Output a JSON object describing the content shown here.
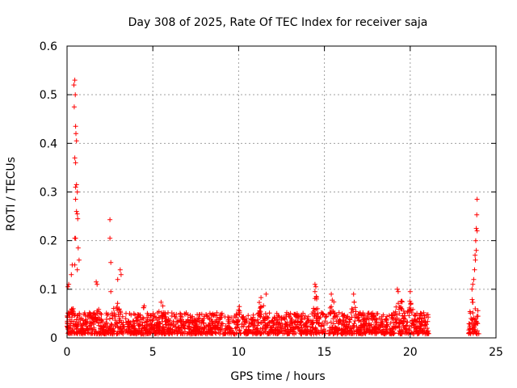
{
  "chart_data": {
    "type": "scatter",
    "title": "Day 308 of 2025, Rate Of TEC Index for receiver saja",
    "xlabel": "GPS time / hours",
    "ylabel": "ROTI / TECUs",
    "xlim": [
      0,
      25
    ],
    "ylim": [
      0,
      0.6
    ],
    "x_ticks": [
      "0",
      "5",
      "10",
      "15",
      "20",
      "25"
    ],
    "y_ticks": [
      "0",
      "0.1",
      "0.2",
      "0.3",
      "0.4",
      "0.5",
      "0.6"
    ],
    "grid": true,
    "marker": "+",
    "color": "#ff0000",
    "segments": [
      {
        "from": 0.0,
        "to": 21.1,
        "base_min": 0.008,
        "base_max": 0.052
      },
      {
        "from": 23.4,
        "to": 24.0,
        "base_min": 0.008,
        "base_max": 0.06
      }
    ],
    "peaks": [
      {
        "x": 0.25,
        "y": 0.13
      },
      {
        "x": 0.3,
        "y": 0.15
      },
      {
        "x": 0.4,
        "y": 0.52
      },
      {
        "x": 0.42,
        "y": 0.475
      },
      {
        "x": 0.45,
        "y": 0.53
      },
      {
        "x": 0.48,
        "y": 0.5
      },
      {
        "x": 0.5,
        "y": 0.435
      },
      {
        "x": 0.52,
        "y": 0.42
      },
      {
        "x": 0.55,
        "y": 0.405
      },
      {
        "x": 0.45,
        "y": 0.37
      },
      {
        "x": 0.5,
        "y": 0.36
      },
      {
        "x": 0.5,
        "y": 0.31
      },
      {
        "x": 0.55,
        "y": 0.315
      },
      {
        "x": 0.6,
        "y": 0.3
      },
      {
        "x": 0.5,
        "y": 0.285
      },
      {
        "x": 0.55,
        "y": 0.26
      },
      {
        "x": 0.6,
        "y": 0.255
      },
      {
        "x": 0.62,
        "y": 0.245
      },
      {
        "x": 0.45,
        "y": 0.205
      },
      {
        "x": 0.5,
        "y": 0.205
      },
      {
        "x": 0.65,
        "y": 0.185
      },
      {
        "x": 0.7,
        "y": 0.16
      },
      {
        "x": 0.45,
        "y": 0.15
      },
      {
        "x": 0.6,
        "y": 0.14
      },
      {
        "x": 0.1,
        "y": 0.11
      },
      {
        "x": 0.05,
        "y": 0.105
      },
      {
        "x": 2.5,
        "y": 0.243
      },
      {
        "x": 2.5,
        "y": 0.205
      },
      {
        "x": 2.55,
        "y": 0.155
      },
      {
        "x": 3.1,
        "y": 0.14
      },
      {
        "x": 3.15,
        "y": 0.13
      },
      {
        "x": 2.95,
        "y": 0.12
      },
      {
        "x": 1.7,
        "y": 0.115
      },
      {
        "x": 1.75,
        "y": 0.11
      },
      {
        "x": 2.55,
        "y": 0.095
      },
      {
        "x": 14.45,
        "y": 0.11
      },
      {
        "x": 14.5,
        "y": 0.105
      },
      {
        "x": 14.45,
        "y": 0.095
      },
      {
        "x": 19.25,
        "y": 0.1
      },
      {
        "x": 19.3,
        "y": 0.095
      },
      {
        "x": 20.0,
        "y": 0.095
      },
      {
        "x": 11.6,
        "y": 0.09
      },
      {
        "x": 16.7,
        "y": 0.09
      },
      {
        "x": 15.4,
        "y": 0.09
      },
      {
        "x": 23.9,
        "y": 0.285
      },
      {
        "x": 23.88,
        "y": 0.253
      },
      {
        "x": 23.85,
        "y": 0.225
      },
      {
        "x": 23.9,
        "y": 0.22
      },
      {
        "x": 23.82,
        "y": 0.2
      },
      {
        "x": 23.85,
        "y": 0.18
      },
      {
        "x": 23.78,
        "y": 0.17
      },
      {
        "x": 23.8,
        "y": 0.16
      },
      {
        "x": 23.75,
        "y": 0.14
      },
      {
        "x": 23.7,
        "y": 0.12
      },
      {
        "x": 23.65,
        "y": 0.11
      },
      {
        "x": 23.6,
        "y": 0.1
      }
    ],
    "bursts": [
      {
        "center": 0.3,
        "width": 0.5,
        "max": 0.07
      },
      {
        "center": 1.8,
        "width": 0.3,
        "max": 0.075
      },
      {
        "center": 2.9,
        "width": 0.6,
        "max": 0.09
      },
      {
        "center": 4.5,
        "width": 0.5,
        "max": 0.07
      },
      {
        "center": 5.5,
        "width": 0.4,
        "max": 0.085
      },
      {
        "center": 7.7,
        "width": 0.5,
        "max": 0.06
      },
      {
        "center": 10.0,
        "width": 0.3,
        "max": 0.075
      },
      {
        "center": 11.3,
        "width": 0.8,
        "max": 0.085
      },
      {
        "center": 14.5,
        "width": 0.6,
        "max": 0.09
      },
      {
        "center": 15.5,
        "width": 0.6,
        "max": 0.085
      },
      {
        "center": 16.7,
        "width": 0.7,
        "max": 0.08
      },
      {
        "center": 19.4,
        "width": 0.8,
        "max": 0.09
      },
      {
        "center": 20.0,
        "width": 0.5,
        "max": 0.085
      },
      {
        "center": 23.6,
        "width": 0.3,
        "max": 0.09
      }
    ]
  }
}
